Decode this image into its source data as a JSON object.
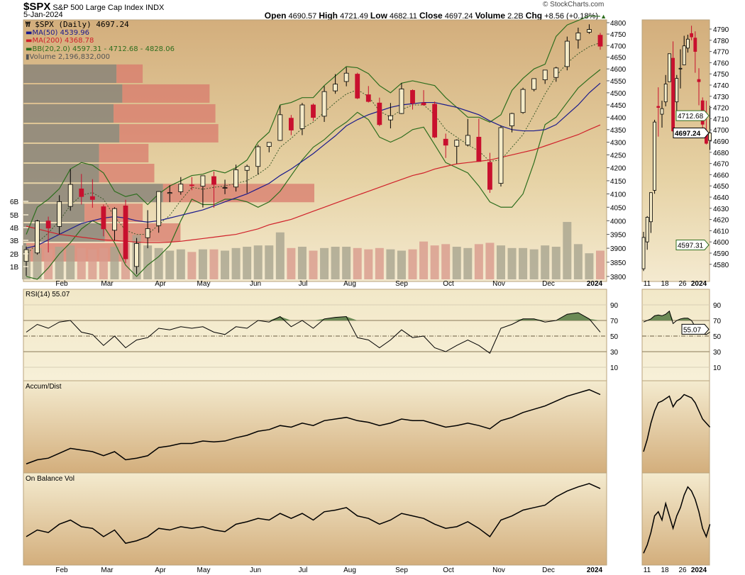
{
  "header": {
    "symbol": "$SPX",
    "name": "S&P 500 Large Cap Index",
    "exchange": "INDX",
    "date": "5-Jan-2024",
    "copyright": "© StockCharts.com",
    "open_label": "Open",
    "open": "4690.57",
    "high_label": "High",
    "high": "4721.49",
    "low_label": "Low",
    "low": "4682.11",
    "close_label": "Close",
    "close": "4697.24",
    "volume_label": "Volume",
    "volume": "2.2B",
    "chg_label": "Chg",
    "chg": "+8.56 (+0.18%)"
  },
  "legend": {
    "price": "$SPX (Daily) 4697.24",
    "ma50": "MA(50) 4539.96",
    "ma200": "MA(200) 4368.78",
    "bb": "BB(20,2.0) 4597.31 - 4712.68 - 4828.06",
    "volume": "Volume 2,196,832,000"
  },
  "colors": {
    "ma50": "#1a1a8c",
    "ma200": "#d0202a",
    "bb": "#2e6e1e",
    "down": "#c8102e",
    "up_fill": "#f5ebc8",
    "rsi_fill": "#6b8a55",
    "vbp_up": "#8a8478",
    "vbp_down": "#d8796c"
  },
  "chart_data": [
    {
      "type": "candlestick",
      "title": "$SPX (Daily)",
      "scale": "log",
      "ylim": [
        3800,
        4800
      ],
      "y_ticks": [
        4800,
        4750,
        4700,
        4650,
        4600,
        4550,
        4500,
        4450,
        4400,
        4350,
        4300,
        4250,
        4200,
        4150,
        4100,
        4050,
        4000,
        3950,
        3900,
        3850,
        3800
      ],
      "volume_ticks": [
        "1B",
        "2B",
        "3B",
        "4B",
        "5B",
        "6B"
      ],
      "x_ticks": [
        "Feb",
        "Mar",
        "Apr",
        "May",
        "Jun",
        "Jul",
        "Aug",
        "Sep",
        "Oct",
        "Nov",
        "Dec",
        "2024"
      ],
      "ohlc": [
        [
          3853,
          3906,
          3802,
          3895
        ],
        [
          3883,
          4003,
          3877,
          3999
        ],
        [
          3999,
          4015,
          3885,
          3973
        ],
        [
          3979,
          4095,
          3950,
          4071
        ],
        [
          4053,
          4195,
          4037,
          4136
        ],
        [
          4119,
          4176,
          4060,
          4090
        ],
        [
          4090,
          4156,
          4048,
          4079
        ],
        [
          4052,
          4060,
          3943,
          3970
        ],
        [
          3965,
          4050,
          3928,
          4045
        ],
        [
          4055,
          4078,
          3847,
          3862
        ],
        [
          3835,
          3937,
          3808,
          3917
        ],
        [
          3938,
          4039,
          3900,
          3971
        ],
        [
          3982,
          4110,
          3956,
          4109
        ],
        [
          4102,
          4133,
          4069,
          4105
        ],
        [
          4108,
          4164,
          4097,
          4137
        ],
        [
          4134,
          4164,
          4114,
          4133
        ],
        [
          4129,
          4170,
          4049,
          4169
        ],
        [
          4166,
          4186,
          4048,
          4136
        ],
        [
          4124,
          4154,
          4099,
          4124
        ],
        [
          4126,
          4212,
          4109,
          4192
        ],
        [
          4190,
          4212,
          4103,
          4205
        ],
        [
          4205,
          4290,
          4173,
          4282
        ],
        [
          4283,
          4299,
          4260,
          4299
        ],
        [
          4307,
          4448,
          4305,
          4410
        ],
        [
          4396,
          4409,
          4328,
          4348
        ],
        [
          4354,
          4458,
          4328,
          4450
        ],
        [
          4450,
          4456,
          4385,
          4399
        ],
        [
          4404,
          4528,
          4381,
          4505
        ],
        [
          4508,
          4578,
          4496,
          4536
        ],
        [
          4547,
          4607,
          4527,
          4582
        ],
        [
          4578,
          4584,
          4474,
          4478
        ],
        [
          4492,
          4528,
          4460,
          4464
        ],
        [
          4458,
          4480,
          4364,
          4370
        ],
        [
          4389,
          4458,
          4355,
          4406
        ],
        [
          4415,
          4541,
          4413,
          4516
        ],
        [
          4510,
          4514,
          4431,
          4457
        ],
        [
          4458,
          4511,
          4448,
          4450
        ],
        [
          4453,
          4464,
          4316,
          4320
        ],
        [
          4312,
          4334,
          4238,
          4288
        ],
        [
          4284,
          4311,
          4216,
          4308
        ],
        [
          4289,
          4393,
          4283,
          4327
        ],
        [
          4320,
          4394,
          4223,
          4224
        ],
        [
          4221,
          4258,
          4104,
          4117
        ],
        [
          4140,
          4366,
          4128,
          4358
        ],
        [
          4365,
          4418,
          4339,
          4415
        ],
        [
          4419,
          4521,
          4414,
          4514
        ],
        [
          4514,
          4560,
          4506,
          4559
        ],
        [
          4554,
          4595,
          4537,
          4595
        ],
        [
          4564,
          4609,
          4546,
          4604
        ],
        [
          4610,
          4739,
          4594,
          4719
        ],
        [
          4725,
          4778,
          4687,
          4755
        ],
        [
          4758,
          4793,
          4751,
          4770
        ],
        [
          4745,
          4755,
          4682,
          4697.24
        ]
      ],
      "ma50": [
        3900,
        3910,
        3930,
        3950,
        3970,
        3990,
        4000,
        4010,
        4015,
        4010,
        4000,
        3995,
        4000,
        4010,
        4020,
        4030,
        4040,
        4055,
        4070,
        4085,
        4100,
        4120,
        4140,
        4170,
        4195,
        4225,
        4255,
        4290,
        4325,
        4365,
        4390,
        4410,
        4425,
        4440,
        4450,
        4455,
        4460,
        4460,
        4450,
        4440,
        4425,
        4410,
        4385,
        4365,
        4350,
        4345,
        4345,
        4350,
        4370,
        4410,
        4450,
        4500,
        4539.96
      ],
      "ma200": [
        3980,
        3970,
        3960,
        3950,
        3945,
        3940,
        3935,
        3930,
        3928,
        3925,
        3922,
        3920,
        3920,
        3922,
        3925,
        3930,
        3935,
        3940,
        3945,
        3950,
        3960,
        3970,
        3985,
        3995,
        4005,
        4020,
        4035,
        4050,
        4065,
        4080,
        4095,
        4110,
        4125,
        4140,
        4155,
        4170,
        4180,
        4195,
        4205,
        4215,
        4220,
        4225,
        4230,
        4240,
        4250,
        4260,
        4270,
        4285,
        4300,
        4315,
        4330,
        4350,
        4368.78
      ],
      "bb_upper": [
        3950,
        4050,
        4080,
        4120,
        4195,
        4220,
        4210,
        4180,
        4110,
        4090,
        4100,
        4060,
        4100,
        4130,
        4150,
        4170,
        4175,
        4190,
        4180,
        4200,
        4230,
        4300,
        4340,
        4450,
        4460,
        4480,
        4480,
        4530,
        4570,
        4610,
        4605,
        4580,
        4530,
        4500,
        4540,
        4550,
        4540,
        4530,
        4480,
        4440,
        4400,
        4400,
        4380,
        4410,
        4510,
        4560,
        4600,
        4620,
        4740,
        4790,
        4810,
        4830,
        4828.06
      ],
      "bb_lower": [
        3800,
        3790,
        3830,
        3880,
        3920,
        3970,
        4000,
        3980,
        3920,
        3840,
        3800,
        3840,
        3870,
        3910,
        4000,
        4080,
        4060,
        4060,
        4080,
        4080,
        4070,
        4050,
        4070,
        4110,
        4170,
        4230,
        4280,
        4310,
        4350,
        4380,
        4420,
        4390,
        4320,
        4300,
        4320,
        4350,
        4360,
        4290,
        4220,
        4200,
        4180,
        4130,
        4070,
        4050,
        4050,
        4100,
        4220,
        4370,
        4400,
        4460,
        4520,
        4560,
        4597.31
      ],
      "volume_b": [
        2.6,
        2.4,
        2.3,
        2.5,
        2.6,
        2.4,
        2.3,
        2.4,
        2.5,
        2.8,
        3.4,
        2.6,
        2.4,
        2.2,
        2.3,
        2.1,
        2.3,
        2.3,
        2.2,
        2.4,
        2.5,
        2.6,
        2.6,
        3.6,
        2.4,
        2.5,
        2.2,
        2.4,
        2.5,
        2.5,
        2.4,
        2.3,
        2.4,
        2.3,
        2.2,
        2.3,
        2.9,
        2.6,
        2.7,
        2.5,
        2.4,
        2.7,
        2.8,
        2.6,
        2.4,
        2.4,
        2.3,
        2.6,
        2.5,
        4.4,
        2.7,
        2.0,
        2.2
      ],
      "volume_by_price": [
        [
          4538,
          4622,
          32,
          9
        ],
        [
          4456,
          4538,
          34,
          30
        ],
        [
          4375,
          4456,
          31,
          35
        ],
        [
          4296,
          4375,
          33,
          34
        ],
        [
          4218,
          4296,
          26,
          17
        ],
        [
          4141,
          4218,
          26,
          19
        ],
        [
          4066,
          4141,
          48,
          52
        ],
        [
          3993,
          4066,
          21,
          20
        ],
        [
          3921,
          3993,
          28,
          26
        ],
        [
          3850,
          3921,
          1,
          34
        ]
      ]
    },
    {
      "type": "candlestick",
      "title": "inset",
      "x_ticks": [
        "11",
        "18",
        "26",
        "2024"
      ],
      "y_ticks": [
        4790,
        4780,
        4770,
        4760,
        4750,
        4740,
        4730,
        4720,
        4710,
        4700,
        4690,
        4680,
        4670,
        4660,
        4650,
        4640,
        4630,
        4620,
        4610,
        4600,
        4590,
        4580
      ],
      "price_tags": {
        "bb_mid": "4712.68",
        "close": "4697.24",
        "bb_low": "4597.31"
      },
      "ohlc": [
        [
          4576,
          4609,
          4574,
          4604
        ],
        [
          4600,
          4623,
          4593,
          4622
        ],
        [
          4618,
          4644,
          4608,
          4644
        ],
        [
          4646,
          4709,
          4643,
          4707
        ],
        [
          4721,
          4738,
          4694,
          4720
        ],
        [
          4714,
          4726,
          4702,
          4719
        ],
        [
          4725,
          4749,
          4721,
          4741
        ],
        [
          4743,
          4768,
          4743,
          4768
        ],
        [
          4764,
          4779,
          4698,
          4699
        ],
        [
          4725,
          4749,
          4709,
          4746
        ],
        [
          4755,
          4772,
          4737,
          4755
        ],
        [
          4758,
          4784,
          4758,
          4775
        ],
        [
          4773,
          4785,
          4769,
          4781
        ],
        [
          4786,
          4793,
          4780,
          4783
        ],
        [
          4782,
          4788,
          4751,
          4770
        ],
        [
          4745,
          4755,
          4722,
          4743
        ],
        [
          4726,
          4729,
          4700,
          4705
        ],
        [
          4697,
          4726,
          4687,
          4688
        ],
        [
          4690.57,
          4721.49,
          4682.11,
          4697.24
        ]
      ]
    },
    {
      "type": "line",
      "title": "RSI(14) 55.07",
      "ylim": [
        0,
        100
      ],
      "y_ticks": [
        90,
        70,
        50,
        30,
        10
      ],
      "current_tag": "55.07",
      "values": [
        55,
        65,
        60,
        68,
        70,
        55,
        52,
        38,
        50,
        35,
        45,
        48,
        60,
        58,
        62,
        60,
        62,
        55,
        52,
        62,
        60,
        70,
        68,
        75,
        62,
        70,
        60,
        72,
        74,
        75,
        48,
        45,
        35,
        45,
        58,
        48,
        50,
        35,
        30,
        38,
        45,
        38,
        28,
        60,
        65,
        72,
        72,
        68,
        70,
        78,
        80,
        72,
        55.07
      ],
      "inset_values": [
        68,
        70,
        72,
        76,
        77,
        76,
        78,
        82,
        66,
        70,
        72,
        73,
        73,
        70,
        62,
        55,
        53,
        52,
        55.07
      ]
    },
    {
      "type": "line",
      "title": "Accum/Dist",
      "values": [
        5,
        10,
        12,
        18,
        24,
        22,
        20,
        15,
        20,
        10,
        12,
        15,
        25,
        27,
        30,
        30,
        33,
        32,
        33,
        37,
        40,
        45,
        47,
        52,
        50,
        55,
        52,
        58,
        60,
        62,
        58,
        56,
        52,
        55,
        60,
        58,
        58,
        54,
        50,
        52,
        55,
        52,
        48,
        58,
        62,
        68,
        72,
        76,
        82,
        88,
        92,
        96,
        90
      ],
      "inset_values": [
        20,
        35,
        55,
        70,
        80,
        82,
        85,
        88,
        75,
        82,
        85,
        90,
        88,
        86,
        80,
        70,
        60,
        55,
        50
      ]
    },
    {
      "type": "line",
      "title": "On Balance Vol",
      "values": [
        30,
        38,
        35,
        45,
        50,
        42,
        40,
        30,
        38,
        22,
        25,
        30,
        40,
        38,
        42,
        40,
        42,
        38,
        36,
        45,
        48,
        52,
        50,
        58,
        52,
        58,
        50,
        60,
        62,
        65,
        55,
        52,
        45,
        50,
        58,
        55,
        52,
        45,
        40,
        42,
        48,
        40,
        30,
        50,
        55,
        62,
        65,
        68,
        78,
        85,
        90,
        94,
        88
      ],
      "inset_values": [
        10,
        20,
        35,
        55,
        60,
        50,
        70,
        55,
        40,
        55,
        65,
        80,
        90,
        85,
        75,
        60,
        40,
        30,
        45
      ]
    }
  ]
}
